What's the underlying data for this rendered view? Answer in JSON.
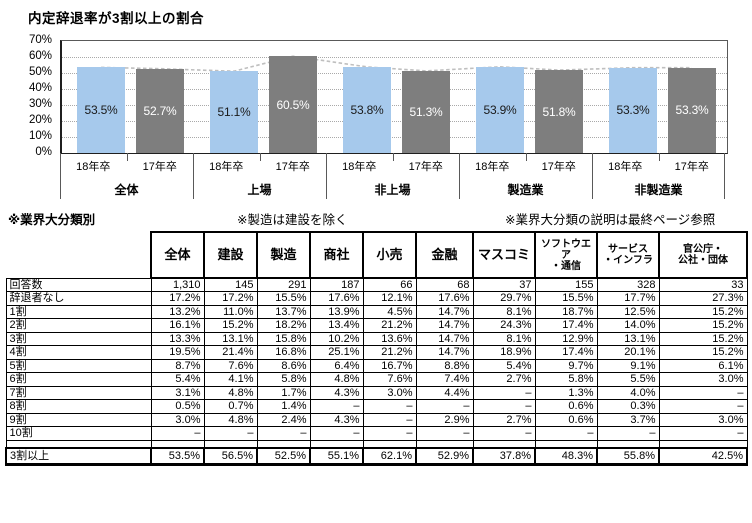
{
  "notes": {
    "manufacturing": "※製造は建設を除く",
    "reference": "※業界大分類の説明は最終ページ参照"
  },
  "chart_data": [
    {
      "type": "bar",
      "title": "内定辞退率が3割以上の割合",
      "groups": [
        "全体",
        "上場",
        "非上場",
        "製造業",
        "非製造業"
      ],
      "series": [
        {
          "name": "18年卒",
          "color": "#a6c9ec",
          "label_color": "#1a1a1a",
          "values": [
            53.5,
            51.1,
            53.8,
            53.9,
            53.3
          ]
        },
        {
          "name": "17年卒",
          "color": "#7e7e7e",
          "label_color": "#ffffff",
          "values": [
            52.7,
            60.5,
            51.3,
            51.8,
            53.3
          ]
        }
      ],
      "ylim": [
        0,
        70
      ],
      "ytick_labels": [
        "70%",
        "60%",
        "50%",
        "40%",
        "30%",
        "20%",
        "10%",
        "0%"
      ],
      "grid": "horizontal-dotted",
      "connector_line_color": "#bfbfbf",
      "legend": "none (series labeled on x-axis)"
    },
    {
      "type": "table",
      "title": "※業界大分類別",
      "columns": [
        "全体",
        "建設",
        "製造",
        "商社",
        "小売",
        "金融",
        "マスコミ",
        "ソフトウエア\n・通信",
        "サービス\n・インフラ",
        "官公庁・\n公社・団体"
      ],
      "rows": [
        {
          "label": "回答数",
          "values": [
            "1,310",
            "145",
            "291",
            "187",
            "66",
            "68",
            "37",
            "155",
            "328",
            "33"
          ]
        },
        {
          "label": "辞退者なし",
          "values": [
            "17.2%",
            "17.2%",
            "15.5%",
            "17.6%",
            "12.1%",
            "17.6%",
            "29.7%",
            "15.5%",
            "17.7%",
            "27.3%"
          ]
        },
        {
          "label": "1割",
          "values": [
            "13.2%",
            "11.0%",
            "13.7%",
            "13.9%",
            "4.5%",
            "14.7%",
            "8.1%",
            "18.7%",
            "12.5%",
            "15.2%"
          ]
        },
        {
          "label": "2割",
          "values": [
            "16.1%",
            "15.2%",
            "18.2%",
            "13.4%",
            "21.2%",
            "14.7%",
            "24.3%",
            "17.4%",
            "14.0%",
            "15.2%"
          ]
        },
        {
          "label": "3割",
          "values": [
            "13.3%",
            "13.1%",
            "15.8%",
            "10.2%",
            "13.6%",
            "14.7%",
            "8.1%",
            "12.9%",
            "13.1%",
            "15.2%"
          ]
        },
        {
          "label": "4割",
          "values": [
            "19.5%",
            "21.4%",
            "16.8%",
            "25.1%",
            "21.2%",
            "14.7%",
            "18.9%",
            "17.4%",
            "20.1%",
            "15.2%"
          ]
        },
        {
          "label": "5割",
          "values": [
            "8.7%",
            "7.6%",
            "8.6%",
            "6.4%",
            "16.7%",
            "8.8%",
            "5.4%",
            "9.7%",
            "9.1%",
            "6.1%"
          ]
        },
        {
          "label": "6割",
          "values": [
            "5.4%",
            "4.1%",
            "5.8%",
            "4.8%",
            "7.6%",
            "7.4%",
            "2.7%",
            "5.8%",
            "5.5%",
            "3.0%"
          ]
        },
        {
          "label": "7割",
          "values": [
            "3.1%",
            "4.8%",
            "1.7%",
            "4.3%",
            "3.0%",
            "4.4%",
            "–",
            "1.3%",
            "4.0%",
            "–"
          ]
        },
        {
          "label": "8割",
          "values": [
            "0.5%",
            "0.7%",
            "1.4%",
            "–",
            "–",
            "–",
            "–",
            "0.6%",
            "0.3%",
            "–"
          ]
        },
        {
          "label": "9割",
          "values": [
            "3.0%",
            "4.8%",
            "2.4%",
            "4.3%",
            "–",
            "2.9%",
            "2.7%",
            "0.6%",
            "3.7%",
            "3.0%"
          ]
        },
        {
          "label": "10割",
          "values": [
            "–",
            "–",
            "–",
            "–",
            "–",
            "–",
            "–",
            "–",
            "–",
            "–"
          ]
        }
      ],
      "summary_row": {
        "label": "3割以上",
        "values": [
          "53.5%",
          "56.5%",
          "52.5%",
          "55.1%",
          "62.1%",
          "52.9%",
          "37.8%",
          "48.3%",
          "55.8%",
          "42.5%"
        ]
      }
    }
  ]
}
